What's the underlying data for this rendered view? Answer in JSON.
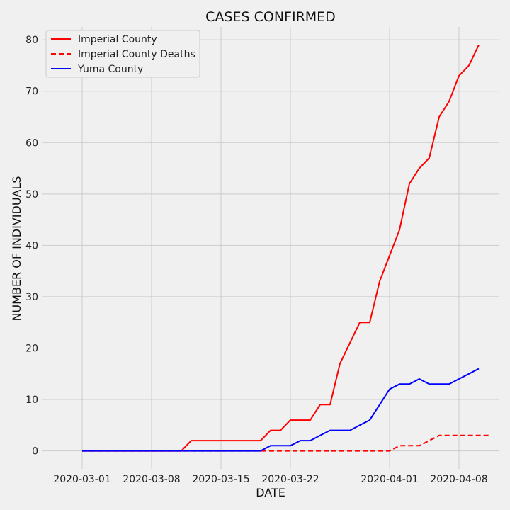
{
  "chart_data": {
    "type": "line",
    "title": "CASES CONFIRMED",
    "xlabel": "DATE",
    "ylabel": "NUMBER OF INDIVIDUALS",
    "x_start": "2020-03-01",
    "x_tick_labels": [
      "2020-03-01",
      "2020-03-08",
      "2020-03-15",
      "2020-03-22",
      "2020-04-01",
      "2020-04-08"
    ],
    "y_ticks": [
      0,
      10,
      20,
      30,
      40,
      50,
      60,
      70,
      80
    ],
    "xlim": [
      "2020-02-26",
      "2020-04-12"
    ],
    "ylim": [
      -3.5,
      82.5
    ],
    "grid": true,
    "legend_position": "top-left",
    "series": [
      {
        "name": "Imperial County",
        "color": "#ff0000",
        "style": "solid",
        "x": [
          "2020-03-01",
          "2020-03-02",
          "2020-03-03",
          "2020-03-04",
          "2020-03-05",
          "2020-03-06",
          "2020-03-07",
          "2020-03-08",
          "2020-03-09",
          "2020-03-10",
          "2020-03-11",
          "2020-03-12",
          "2020-03-13",
          "2020-03-14",
          "2020-03-15",
          "2020-03-16",
          "2020-03-17",
          "2020-03-18",
          "2020-03-19",
          "2020-03-20",
          "2020-03-21",
          "2020-03-22",
          "2020-03-23",
          "2020-03-24",
          "2020-03-25",
          "2020-03-26",
          "2020-03-27",
          "2020-03-28",
          "2020-03-29",
          "2020-03-30",
          "2020-03-31",
          "2020-04-01",
          "2020-04-02",
          "2020-04-03",
          "2020-04-04",
          "2020-04-05",
          "2020-04-06",
          "2020-04-07",
          "2020-04-08",
          "2020-04-09",
          "2020-04-10"
        ],
        "values": [
          0,
          0,
          0,
          0,
          0,
          0,
          0,
          0,
          0,
          0,
          0,
          2,
          2,
          2,
          2,
          2,
          2,
          2,
          2,
          4,
          4,
          6,
          6,
          6,
          9,
          9,
          17,
          21,
          25,
          25,
          33,
          38,
          43,
          52,
          55,
          57,
          65,
          68,
          73,
          75,
          79
        ]
      },
      {
        "name": "Imperial County Deaths",
        "color": "#ff0000",
        "style": "dashed",
        "x": [
          "2020-03-01",
          "2020-03-02",
          "2020-03-03",
          "2020-03-04",
          "2020-03-05",
          "2020-03-06",
          "2020-03-07",
          "2020-03-08",
          "2020-03-09",
          "2020-03-10",
          "2020-03-11",
          "2020-03-12",
          "2020-03-13",
          "2020-03-14",
          "2020-03-15",
          "2020-03-16",
          "2020-03-17",
          "2020-03-18",
          "2020-03-19",
          "2020-03-20",
          "2020-03-21",
          "2020-03-22",
          "2020-03-23",
          "2020-03-24",
          "2020-03-25",
          "2020-03-26",
          "2020-03-27",
          "2020-03-28",
          "2020-03-29",
          "2020-03-30",
          "2020-03-31",
          "2020-04-01",
          "2020-04-02",
          "2020-04-03",
          "2020-04-04",
          "2020-04-05",
          "2020-04-06",
          "2020-04-07",
          "2020-04-08",
          "2020-04-09",
          "2020-04-10",
          "2020-04-11"
        ],
        "values": [
          0,
          0,
          0,
          0,
          0,
          0,
          0,
          0,
          0,
          0,
          0,
          0,
          0,
          0,
          0,
          0,
          0,
          0,
          0,
          0,
          0,
          0,
          0,
          0,
          0,
          0,
          0,
          0,
          0,
          0,
          0,
          0,
          1,
          1,
          1,
          2,
          3,
          3,
          3,
          3,
          3,
          3
        ]
      },
      {
        "name": "Yuma County",
        "color": "#0000ff",
        "style": "solid",
        "x": [
          "2020-03-01",
          "2020-03-02",
          "2020-03-03",
          "2020-03-04",
          "2020-03-05",
          "2020-03-06",
          "2020-03-07",
          "2020-03-08",
          "2020-03-09",
          "2020-03-10",
          "2020-03-11",
          "2020-03-12",
          "2020-03-13",
          "2020-03-14",
          "2020-03-15",
          "2020-03-16",
          "2020-03-17",
          "2020-03-18",
          "2020-03-19",
          "2020-03-20",
          "2020-03-21",
          "2020-03-22",
          "2020-03-23",
          "2020-03-24",
          "2020-03-25",
          "2020-03-26",
          "2020-03-27",
          "2020-03-28",
          "2020-03-29",
          "2020-03-30",
          "2020-03-31",
          "2020-04-01",
          "2020-04-02",
          "2020-04-03",
          "2020-04-04",
          "2020-04-05",
          "2020-04-06",
          "2020-04-07",
          "2020-04-08",
          "2020-04-09",
          "2020-04-10"
        ],
        "values": [
          0,
          0,
          0,
          0,
          0,
          0,
          0,
          0,
          0,
          0,
          0,
          0,
          0,
          0,
          0,
          0,
          0,
          0,
          0,
          1,
          1,
          1,
          2,
          2,
          3,
          4,
          4,
          4,
          5,
          6,
          9,
          12,
          13,
          13,
          14,
          13,
          13,
          13,
          14,
          15,
          16
        ]
      }
    ]
  }
}
